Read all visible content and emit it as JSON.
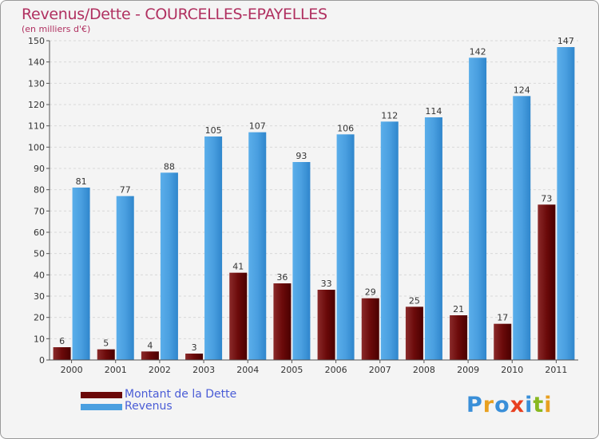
{
  "header": {
    "title": "Revenus/Dette - COURCELLES-EPAYELLES",
    "subtitle": "(en milliers d'€)"
  },
  "legend": {
    "items": [
      {
        "label": "Montant de la Dette",
        "color": "#6b0a0a"
      },
      {
        "label": "Revenus",
        "color": "#4a9fe0"
      }
    ]
  },
  "logo": {
    "text": "Proxiti",
    "letters": [
      "P",
      "r",
      "o",
      "x",
      "i",
      "t",
      "i"
    ],
    "colors": [
      "#3a8fd8",
      "#e8a020",
      "#3a8fd8",
      "#e84020",
      "#3a8fd8",
      "#88b820",
      "#e8a020"
    ]
  },
  "colors": {
    "debt": "#6b0a0a",
    "revenue": "#4a9fe0",
    "title": "#b03060",
    "legend_text": "#4a5cd6"
  },
  "chart_data": {
    "type": "bar",
    "title": "Revenus/Dette - COURCELLES-EPAYELLES",
    "ylabel": "(en milliers d'€)",
    "xlabel": "",
    "categories": [
      "2000",
      "2001",
      "2002",
      "2003",
      "2004",
      "2005",
      "2006",
      "2007",
      "2008",
      "2009",
      "2010",
      "2011"
    ],
    "series": [
      {
        "name": "Montant de la Dette",
        "values": [
          6,
          5,
          4,
          3,
          41,
          36,
          33,
          29,
          25,
          21,
          17,
          73
        ]
      },
      {
        "name": "Revenus",
        "values": [
          81,
          77,
          88,
          105,
          107,
          93,
          106,
          112,
          114,
          142,
          124,
          147
        ]
      }
    ],
    "ylim": [
      0,
      150
    ],
    "yticks": [
      0,
      10,
      20,
      30,
      40,
      50,
      60,
      70,
      80,
      90,
      100,
      110,
      120,
      130,
      140,
      150
    ],
    "grid": true,
    "legend_position": "bottom-left"
  }
}
